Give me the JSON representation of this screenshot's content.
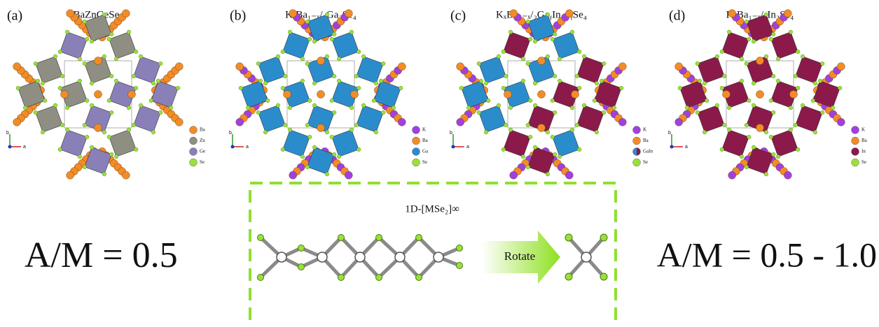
{
  "panels": [
    {
      "label": "(a)",
      "title": "BaZnGeSe₄",
      "axes": [
        "b",
        "a"
      ],
      "legend": [
        {
          "name": "Ba",
          "color": "#f28c28"
        },
        {
          "name": "Zn",
          "color": "#8e8e82"
        },
        {
          "name": "Ge",
          "color": "#8a80b8"
        },
        {
          "name": "Se",
          "color": "#9be03a"
        }
      ]
    },
    {
      "label": "(b)",
      "title": "KₓBa₁₋ₓ/₂Ga₂Se₄",
      "axes": [
        "b",
        "a"
      ],
      "legend": [
        {
          "name": "K",
          "color": "#a040e0"
        },
        {
          "name": "Ba",
          "color": "#f28c28"
        },
        {
          "name": "Ga",
          "color": "#2b8ccc"
        },
        {
          "name": "Se",
          "color": "#9be03a"
        }
      ]
    },
    {
      "label": "(c)",
      "title": "KₓBa₁₋ₓ/₂GaᵧIn₂₋ᵧSe₄",
      "axes": [
        "b",
        "a"
      ],
      "legend": [
        {
          "name": "K",
          "color": "#a040e0"
        },
        {
          "name": "Ba",
          "color": "#f28c28"
        },
        {
          "name": "GaIn",
          "color": [
            "#2b8ccc",
            "#8b1a4a"
          ]
        },
        {
          "name": "Se",
          "color": "#9be03a"
        }
      ]
    },
    {
      "label": "(d)",
      "title": "KₓBa₁₋ₓ/₂In₂Se₄",
      "axes": [
        "b",
        "a"
      ],
      "legend": [
        {
          "name": "K",
          "color": "#a040e0"
        },
        {
          "name": "Ba",
          "color": "#f28c28"
        },
        {
          "name": "In",
          "color": "#8b1a4a"
        },
        {
          "name": "Se",
          "color": "#9be03a"
        }
      ]
    }
  ],
  "bottom": {
    "left": "A/M = 0.5",
    "box_title": "1D-[MSe₂]∞",
    "arrow": "Rotate",
    "right": "A/M = 0.5 - 1.0"
  }
}
